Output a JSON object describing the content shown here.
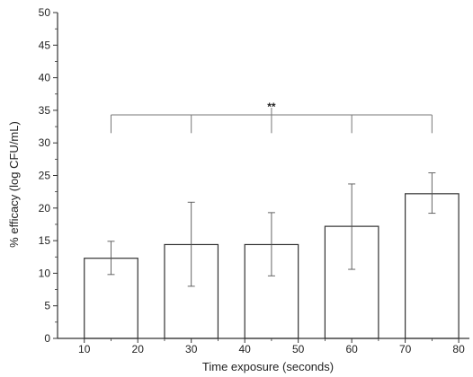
{
  "chart_data": {
    "type": "bar",
    "title": "",
    "xlabel": "Time exposure (seconds)",
    "ylabel": "% efficacy (log CFU/mL)",
    "xlim": [
      5,
      82
    ],
    "ylim": [
      0,
      50
    ],
    "x_ticks": [
      10,
      20,
      30,
      40,
      50,
      60,
      70,
      80
    ],
    "y_ticks": [
      0,
      5,
      10,
      15,
      20,
      25,
      30,
      35,
      40,
      45,
      50
    ],
    "bars": [
      {
        "x_start": 10,
        "x_end": 20,
        "value": 12.3,
        "err_low": 9.8,
        "err_high": 14.9
      },
      {
        "x_start": 25,
        "x_end": 35,
        "value": 14.4,
        "err_low": 8.0,
        "err_high": 20.9
      },
      {
        "x_start": 40,
        "x_end": 50,
        "value": 14.4,
        "err_low": 9.6,
        "err_high": 19.3
      },
      {
        "x_start": 55,
        "x_end": 65,
        "value": 17.2,
        "err_low": 10.6,
        "err_high": 23.7
      },
      {
        "x_start": 70,
        "x_end": 80,
        "value": 22.2,
        "err_low": 19.2,
        "err_high": 25.4
      }
    ],
    "significance": {
      "label": "**",
      "level": 34.3,
      "drop_to": 31.5,
      "from_bar": 0,
      "to_bar": 4
    },
    "grid": false,
    "legend": "none"
  }
}
